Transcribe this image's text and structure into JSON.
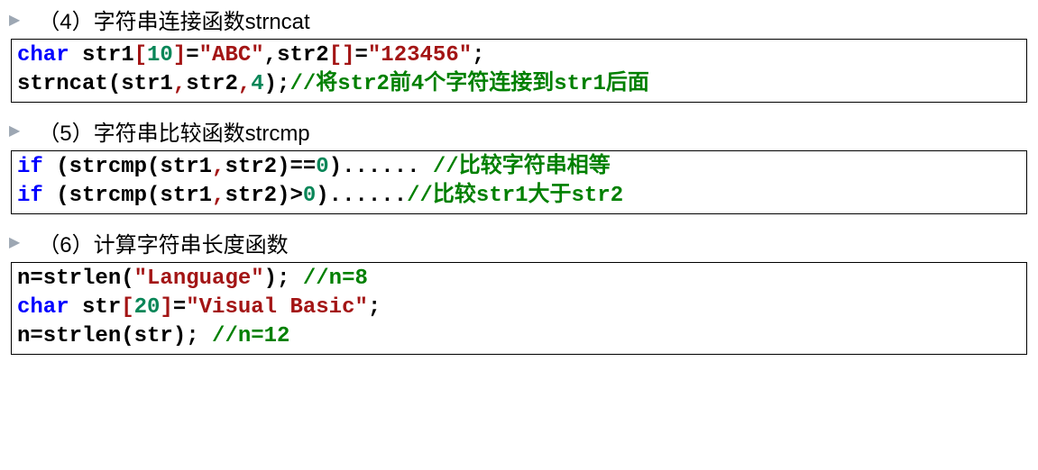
{
  "sections": [
    {
      "heading": "（4）字符串连接函数strncat",
      "code_html": "<span class='kw'>char</span><span class='plain'> str1</span><span class='br'>[</span><span class='num'>10</span><span class='br'>]</span><span class='plain'>=</span><span class='str'>\"ABC\"</span><span class='plain'>,str2</span><span class='br'>[]</span><span class='plain'>=</span><span class='str'>\"123456\"</span><span class='plain'>;</span>\n<span class='plain'>strncat(str1</span><span class='br'>,</span><span class='plain'>str2</span><span class='br'>,</span><span class='num'>4</span><span class='plain'>);</span><span class='cmt'>//将str2前4个字符连接到str1后面</span>"
    },
    {
      "heading": "（5）字符串比较函数strcmp",
      "code_html": "<span class='kw'>if</span><span class='plain'> (strcmp(str1</span><span class='br'>,</span><span class='plain'>str2)==</span><span class='num'>0</span><span class='plain'>)...... </span><span class='cmt'>//比较字符串相等</span>\n<span class='kw'>if</span><span class='plain'> (strcmp(str1</span><span class='br'>,</span><span class='plain'>str2)&gt;</span><span class='num'>0</span><span class='plain'>)......</span><span class='cmt'>//比较str1大于str2</span>"
    },
    {
      "heading": "（6）计算字符串长度函数",
      "code_html": "<span class='plain'>n=strlen(</span><span class='str'>\"Language\"</span><span class='plain'>); </span><span class='cmt'>//n=8</span>\n<span class='kw'>char</span><span class='plain'> str</span><span class='br'>[</span><span class='num'>20</span><span class='br'>]</span><span class='plain'>=</span><span class='str'>\"Visual Basic\"</span><span class='plain'>;</span>\n<span class='plain'>n=strlen(str); </span><span class='cmt'>//n=12</span>"
    }
  ],
  "style": {
    "keyword_color": "#0000ff",
    "bracket_color": "#a31515",
    "string_color": "#a31515",
    "number_color": "#098658",
    "comment_color": "#008000",
    "text_color": "#000000",
    "bullet_color": "#9da7b3",
    "border_color": "#000000",
    "background_color": "#ffffff",
    "code_font": "Consolas",
    "heading_font": "Microsoft YaHei",
    "code_fontsize": 24,
    "heading_fontsize": 24
  }
}
